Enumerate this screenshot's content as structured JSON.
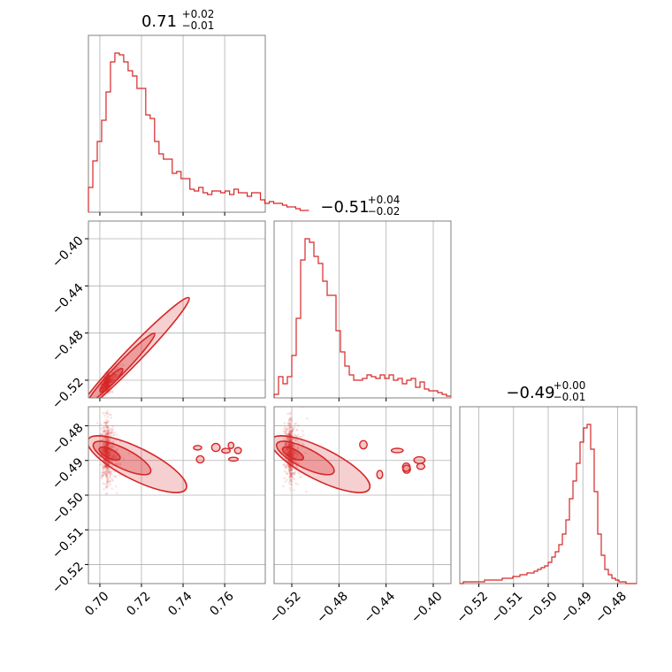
{
  "chart_data": {
    "type": "corner",
    "color": "#d62728",
    "parameters": [
      {
        "title_value": "0.71",
        "title_upper": "+0.02",
        "title_lower": "−0.01",
        "range": [
          0.6945,
          0.7795
        ],
        "ticks": [
          0.7,
          0.72,
          0.74,
          0.76
        ],
        "tick_labels": [
          "0.70",
          "0.72",
          "0.74",
          "0.76"
        ],
        "hist_edges_start": 0.6945,
        "hist_bin_width": 0.00212,
        "hist_counts": [
          0.14,
          0.29,
          0.4,
          0.52,
          0.68,
          0.85,
          0.9,
          0.89,
          0.85,
          0.8,
          0.77,
          0.7,
          0.7,
          0.55,
          0.53,
          0.4,
          0.33,
          0.3,
          0.3,
          0.22,
          0.23,
          0.19,
          0.19,
          0.13,
          0.12,
          0.14,
          0.11,
          0.1,
          0.12,
          0.12,
          0.11,
          0.12,
          0.1,
          0.13,
          0.11,
          0.11,
          0.09,
          0.11,
          0.11,
          0.07,
          0.05,
          0.06,
          0.05,
          0.05,
          0.04,
          0.03,
          0.03,
          0.02,
          0.01,
          0.01
        ]
      },
      {
        "title_value": "−0.51",
        "title_upper": "+0.04",
        "title_lower": "−0.02",
        "range": [
          -0.535,
          -0.385
        ],
        "ticks": [
          -0.52,
          -0.48,
          -0.44,
          -0.4
        ],
        "tick_labels": [
          "−0.52",
          "−0.48",
          "−0.44",
          "−0.40"
        ],
        "hist_edges_start": -0.535,
        "hist_bin_width": 0.00375,
        "hist_counts": [
          0.02,
          0.12,
          0.08,
          0.12,
          0.24,
          0.45,
          0.78,
          0.9,
          0.88,
          0.8,
          0.76,
          0.66,
          0.58,
          0.58,
          0.38,
          0.26,
          0.18,
          0.13,
          0.1,
          0.1,
          0.11,
          0.13,
          0.12,
          0.11,
          0.13,
          0.11,
          0.13,
          0.1,
          0.11,
          0.08,
          0.1,
          0.11,
          0.06,
          0.09,
          0.05,
          0.04,
          0.04,
          0.03,
          0.02,
          0.01
        ]
      },
      {
        "title_value": "−0.49",
        "title_upper": "+0.00",
        "title_lower": "−0.01",
        "range": [
          -0.5255,
          -0.4745
        ],
        "ticks": [
          -0.52,
          -0.51,
          -0.5,
          -0.49,
          -0.48
        ],
        "tick_labels": [
          "−0.52",
          "−0.51",
          "−0.50",
          "−0.49",
          "−0.48"
        ],
        "hist_edges_start": -0.5255,
        "hist_bin_width": 0.00102,
        "hist_counts": [
          0.0,
          0.01,
          0.01,
          0.01,
          0.01,
          0.01,
          0.01,
          0.02,
          0.02,
          0.02,
          0.02,
          0.02,
          0.03,
          0.03,
          0.03,
          0.04,
          0.04,
          0.05,
          0.05,
          0.06,
          0.06,
          0.07,
          0.08,
          0.09,
          0.1,
          0.12,
          0.15,
          0.18,
          0.22,
          0.28,
          0.36,
          0.48,
          0.58,
          0.68,
          0.8,
          0.88,
          0.9,
          0.76,
          0.52,
          0.28,
          0.16,
          0.08,
          0.05,
          0.03,
          0.02,
          0.01,
          0.01,
          0.0,
          0.0,
          0.0
        ]
      }
    ],
    "pairs": [
      {
        "x_param": 0,
        "y_param": 1,
        "relation": "positive-linear",
        "x_center": 0.703,
        "y_center": -0.523,
        "slope": 1.83
      },
      {
        "x_param": 0,
        "y_param": 2,
        "relation": "negative",
        "x_center": 0.703,
        "y_center": -0.4875,
        "slope": -0.16
      },
      {
        "x_param": 1,
        "y_param": 2,
        "relation": "negative",
        "x_center": -0.522,
        "y_center": -0.4875,
        "slope": -0.08
      }
    ]
  }
}
